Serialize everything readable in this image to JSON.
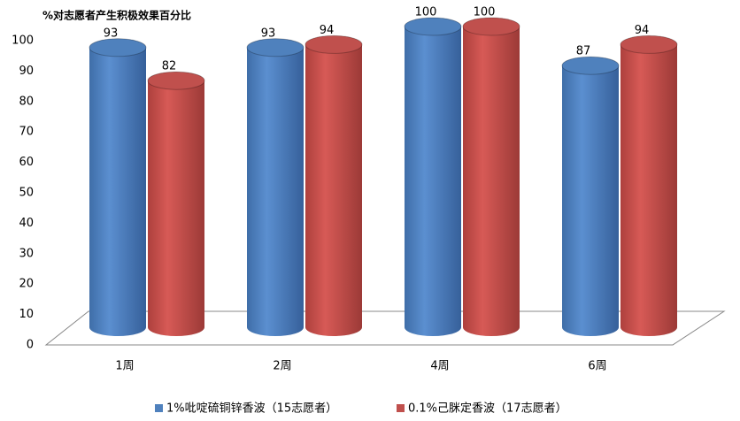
{
  "chart_data": {
    "type": "cylinder_bar",
    "title": "%对志愿者产生积极效果百分比",
    "categories": [
      "1周",
      "2周",
      "4周",
      "6周"
    ],
    "series": [
      {
        "name": "1%吡啶硫铜锌香波（15志愿者）",
        "color": "#4f81bd",
        "values": [
          93,
          93,
          100,
          87
        ]
      },
      {
        "name": "0.1%己脒定香波（17志愿者）",
        "color": "#c0504d",
        "values": [
          82,
          94,
          100,
          94
        ]
      }
    ],
    "ylim": [
      0,
      100
    ],
    "yticks": [
      0,
      10,
      20,
      30,
      40,
      50,
      60,
      70,
      80,
      90,
      100
    ],
    "legend": "bottom",
    "grid": false
  }
}
